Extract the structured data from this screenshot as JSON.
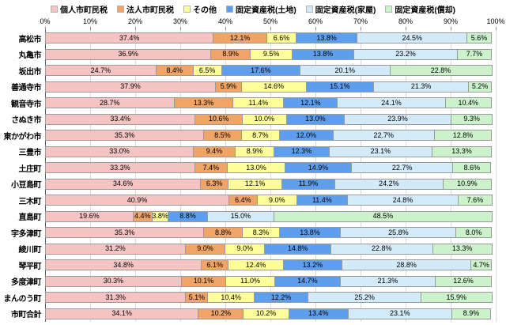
{
  "colors": {
    "personal": "#F6C3C3",
    "corporate": "#F0A466",
    "other": "#FFFF99",
    "land": "#5E9EEE",
    "house": "#D3EAF8",
    "depreciation": "#CCF2CC",
    "gridline": "#D9D9D9",
    "axis_line": "#555555",
    "segment_border": "#9A9A9A"
  },
  "axis": {
    "ticks": [
      "0%",
      "10%",
      "20%",
      "30%",
      "40%",
      "50%",
      "60%",
      "70%",
      "80%",
      "90%",
      "100%"
    ]
  },
  "chart_data": {
    "type": "bar",
    "stacked": true,
    "orientation": "horizontal",
    "value_suffix": "%",
    "xlim": [
      0,
      100
    ],
    "grid": true,
    "legend_position": "top",
    "categories": [
      "高松市",
      "丸亀市",
      "坂出市",
      "善通寺市",
      "観音寺市",
      "さぬき市",
      "東かがわ市",
      "三豊市",
      "土庄町",
      "小豆島町",
      "三木町",
      "直島町",
      "宇多津町",
      "綾川町",
      "琴平町",
      "多度津町",
      "まんのう町",
      "市町合計"
    ],
    "series": [
      {
        "name": "個人市町民税",
        "color_key": "personal",
        "values": [
          37.4,
          36.9,
          24.7,
          37.9,
          28.7,
          33.4,
          35.3,
          33.0,
          33.3,
          34.6,
          40.9,
          19.6,
          35.3,
          31.2,
          34.8,
          30.3,
          31.3,
          34.1
        ]
      },
      {
        "name": "法人市町民税",
        "color_key": "corporate",
        "values": [
          12.1,
          8.9,
          8.4,
          5.9,
          13.3,
          10.6,
          8.5,
          9.4,
          7.4,
          6.3,
          6.4,
          4.4,
          8.8,
          9.0,
          6.1,
          10.1,
          5.1,
          10.2
        ]
      },
      {
        "name": "その他",
        "color_key": "other",
        "values": [
          6.6,
          9.5,
          6.5,
          14.6,
          11.4,
          10.0,
          8.7,
          8.9,
          13.0,
          12.1,
          9.0,
          3.8,
          8.3,
          9.0,
          12.4,
          11.0,
          10.4,
          10.2
        ]
      },
      {
        "name": "固定資産税(土地)",
        "color_key": "land",
        "values": [
          13.8,
          13.8,
          17.6,
          15.1,
          12.1,
          13.0,
          12.0,
          12.3,
          14.9,
          11.9,
          11.4,
          8.8,
          13.8,
          14.8,
          13.2,
          14.7,
          12.2,
          13.4
        ]
      },
      {
        "name": "固定資産税(家屋)",
        "color_key": "house",
        "values": [
          24.5,
          23.2,
          20.1,
          21.3,
          24.1,
          23.9,
          22.7,
          23.1,
          22.7,
          24.2,
          24.8,
          15.0,
          25.8,
          22.8,
          28.8,
          21.3,
          25.2,
          23.1
        ]
      },
      {
        "name": "固定資産税(償却)",
        "color_key": "depreciation",
        "values": [
          5.6,
          7.7,
          22.8,
          5.2,
          10.4,
          9.3,
          12.8,
          13.3,
          8.6,
          10.9,
          7.6,
          48.5,
          8.0,
          13.3,
          4.7,
          12.6,
          15.9,
          8.9
        ]
      }
    ]
  }
}
